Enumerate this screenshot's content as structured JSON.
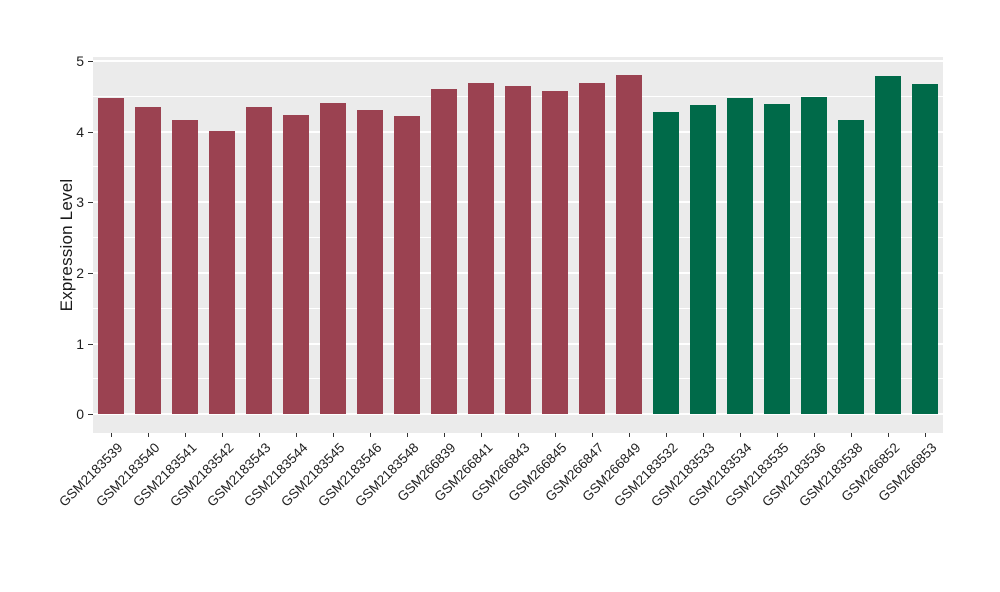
{
  "figure": {
    "title": "",
    "ylabel": "Expression Level",
    "background_color": "#FFFFFF",
    "panel_background_color": "#EBEBEB",
    "gridline_color": "#FFFFFF",
    "axis_tick_color": "#333333",
    "axis_text_color": "#1F1F1F",
    "bar_color_group1": "#9B4251",
    "bar_color_group2": "#006A49"
  },
  "chart_data": {
    "type": "bar",
    "title": "",
    "xlabel": "",
    "ylabel": "Expression Level",
    "ylim": [
      0,
      5
    ],
    "yticks": [
      0,
      1,
      2,
      3,
      4,
      5
    ],
    "grid": "white major gridlines at integers and minor gridlines at 0.5 steps on gray panel",
    "legend_position": "none",
    "x_label_rotation_deg": 45,
    "categories": [
      "GSM2183539",
      "GSM2183540",
      "GSM2183541",
      "GSM2183542",
      "GSM2183543",
      "GSM2183544",
      "GSM2183545",
      "GSM2183546",
      "GSM2183548",
      "GSM266839",
      "GSM266841",
      "GSM266843",
      "GSM266845",
      "GSM266847",
      "GSM266849",
      "GSM2183532",
      "GSM2183533",
      "GSM2183534",
      "GSM2183535",
      "GSM2183536",
      "GSM2183538",
      "GSM266852",
      "GSM266853"
    ],
    "values": [
      4.48,
      4.34,
      4.17,
      4.01,
      4.35,
      4.24,
      4.41,
      4.3,
      4.22,
      4.6,
      4.68,
      4.65,
      4.57,
      4.68,
      4.8,
      4.27,
      4.37,
      4.47,
      4.39,
      4.49,
      4.17,
      4.78,
      4.67
    ],
    "bar_colors": [
      "#9B4251",
      "#9B4251",
      "#9B4251",
      "#9B4251",
      "#9B4251",
      "#9B4251",
      "#9B4251",
      "#9B4251",
      "#9B4251",
      "#9B4251",
      "#9B4251",
      "#9B4251",
      "#9B4251",
      "#9B4251",
      "#9B4251",
      "#006A49",
      "#006A49",
      "#006A49",
      "#006A49",
      "#006A49",
      "#006A49",
      "#006A49",
      "#006A49"
    ]
  }
}
